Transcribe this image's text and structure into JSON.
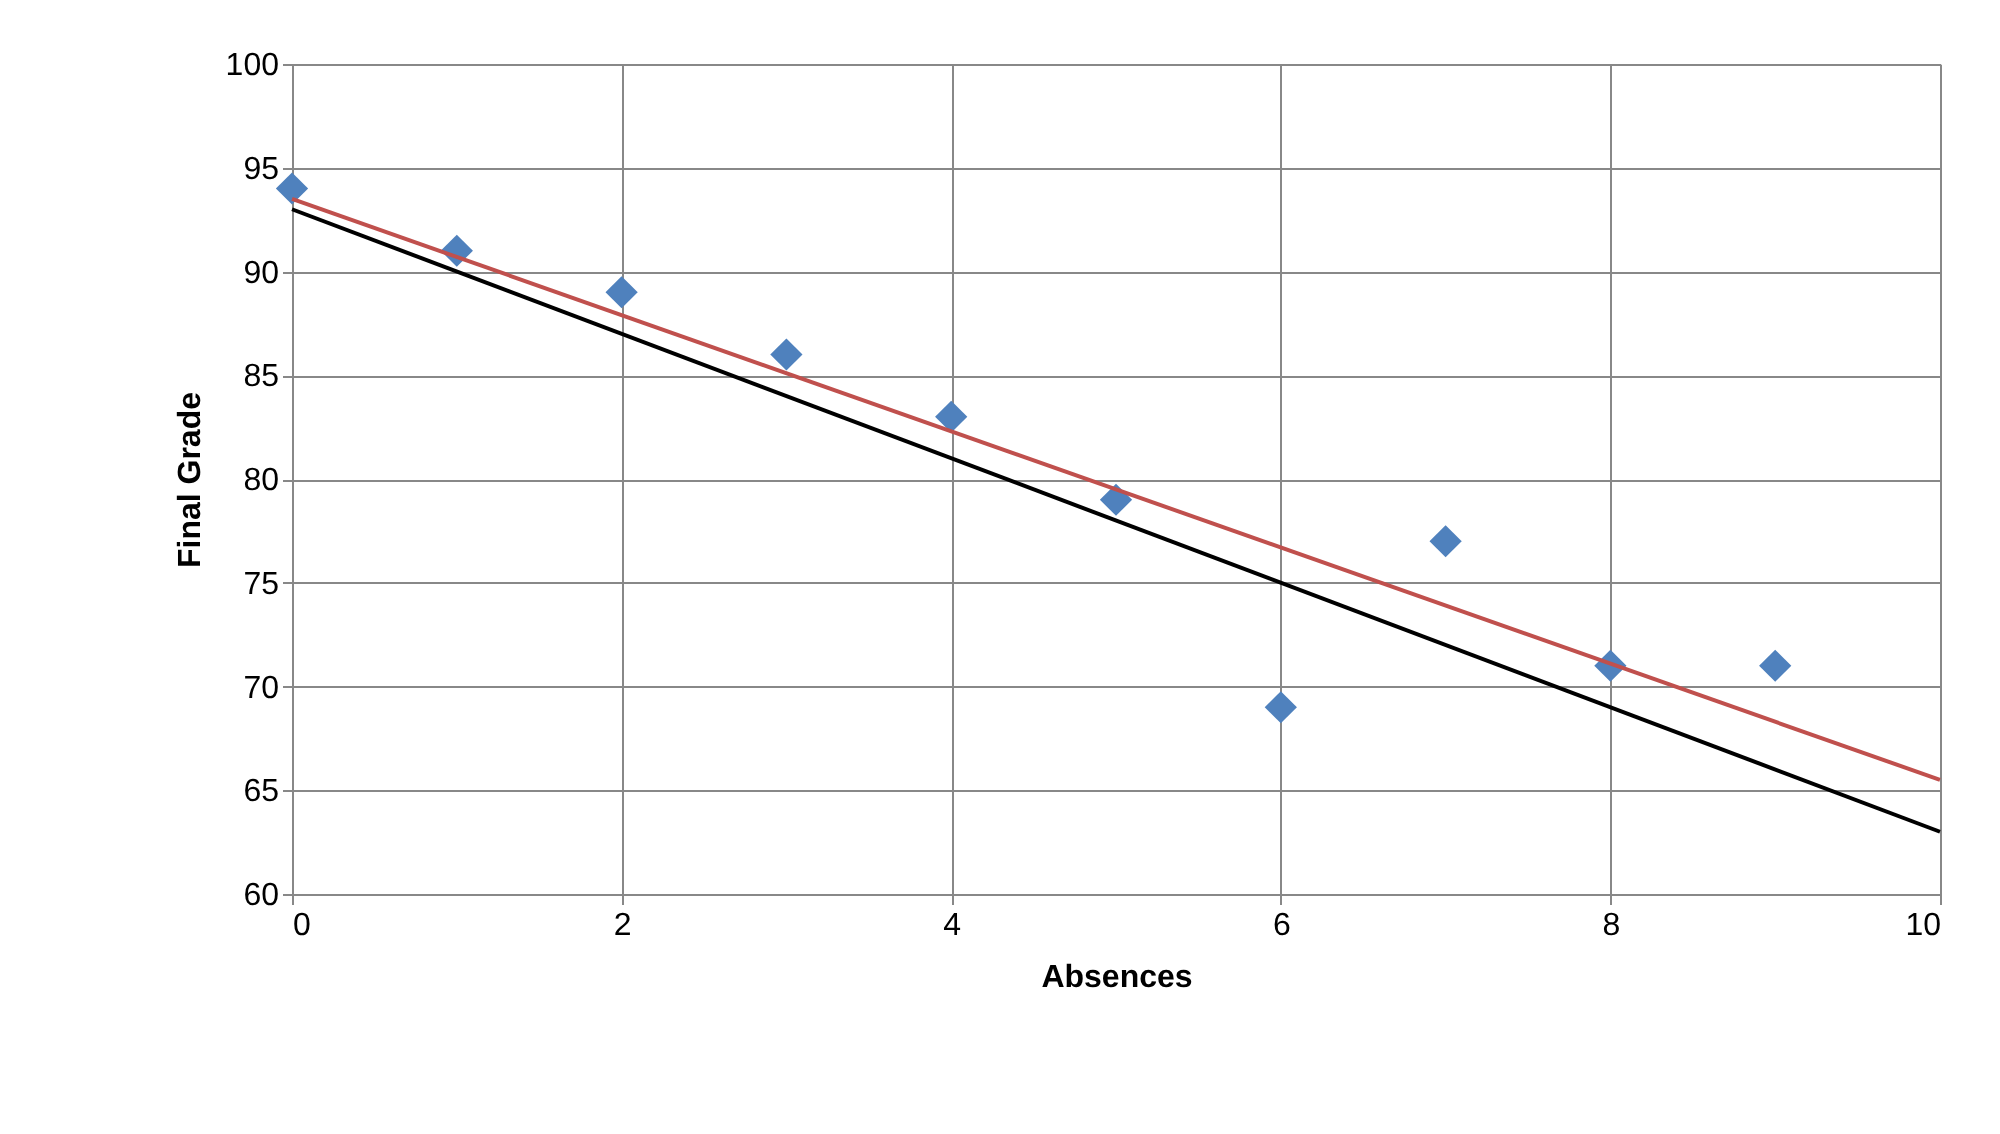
{
  "chart_data": {
    "type": "scatter",
    "xlabel": "Absences",
    "ylabel": "Final Grade",
    "xlim": [
      0,
      10
    ],
    "ylim": [
      60,
      100
    ],
    "xticks": [
      0,
      2,
      4,
      6,
      8,
      10
    ],
    "yticks": [
      60,
      65,
      70,
      75,
      80,
      85,
      90,
      95,
      100
    ],
    "grid": true,
    "marker": "diamond",
    "series": [
      {
        "color": "#4f81bd",
        "x": [
          0,
          1,
          2,
          3,
          4,
          5,
          6,
          7,
          8,
          9
        ],
        "values": [
          94,
          91,
          89,
          86,
          83,
          79,
          69,
          77,
          71,
          71
        ]
      },
      {
        "type": "line",
        "marker": "none",
        "line_style": "solid",
        "color": "#c0504d",
        "x": [
          0,
          10
        ],
        "values": [
          93.5,
          65.5
        ]
      },
      {
        "type": "line",
        "marker": "none",
        "line_style": "solid",
        "color": "#000000",
        "x": [
          0,
          10
        ],
        "values": [
          93,
          63
        ]
      }
    ]
  }
}
